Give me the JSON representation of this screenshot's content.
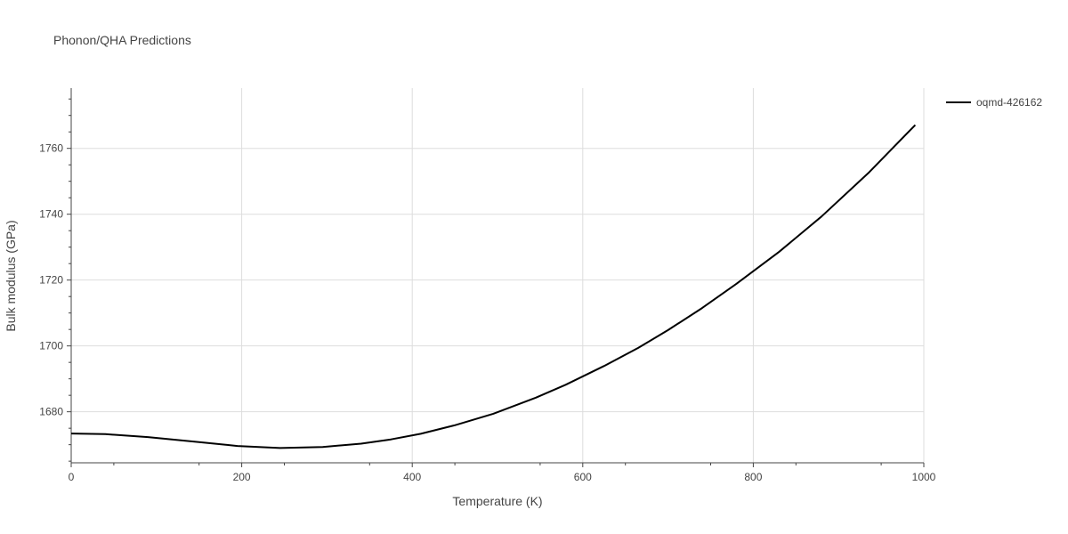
{
  "chart_data": {
    "type": "line",
    "title": "Phonon/QHA Predictions",
    "xlabel": "Temperature (K)",
    "ylabel": "Bulk modulus (GPa)",
    "xlim": [
      0,
      1000
    ],
    "ylim": [
      1664.5,
      1778.3
    ],
    "xticks": [
      0,
      200,
      400,
      600,
      800,
      1000
    ],
    "yticks": [
      1680,
      1700,
      1720,
      1740,
      1760
    ],
    "xtick_labels": [
      "0",
      "200",
      "400",
      "600",
      "800",
      "1000"
    ],
    "ytick_labels": [
      "1680",
      "1700",
      "1720",
      "1740",
      "1760"
    ],
    "grid": true,
    "legend_position": "top-right",
    "series": [
      {
        "name": "oqmd-426162",
        "color": "#000000",
        "x": [
          0,
          40,
          90,
          150,
          195,
          245,
          295,
          340,
          375,
          410,
          450,
          495,
          545,
          580,
          625,
          665,
          700,
          740,
          780,
          830,
          880,
          935,
          990
        ],
        "y": [
          1673.4,
          1673.2,
          1672.3,
          1670.8,
          1669.6,
          1669.0,
          1669.3,
          1670.3,
          1671.6,
          1673.3,
          1675.9,
          1679.4,
          1684.3,
          1688.2,
          1693.9,
          1699.4,
          1704.8,
          1711.5,
          1718.8,
          1728.5,
          1739.3,
          1752.5,
          1767.1
        ]
      }
    ]
  }
}
